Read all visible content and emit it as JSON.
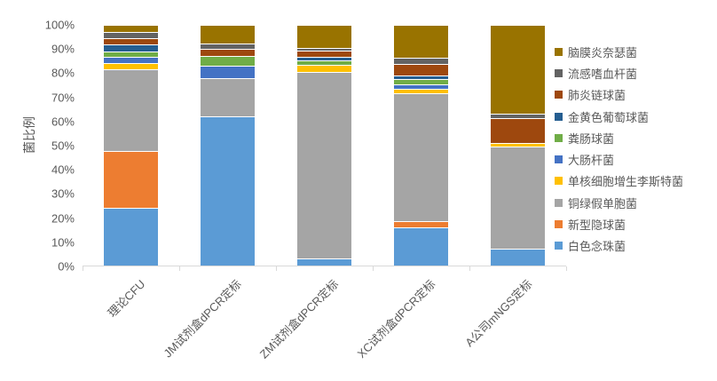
{
  "chart_data": {
    "type": "bar",
    "subtype": "stacked-100-percent",
    "title": "",
    "xlabel": "",
    "ylabel": "菌比例",
    "ylim": [
      0,
      100
    ],
    "y_ticks": [
      "0%",
      "10%",
      "20%",
      "30%",
      "40%",
      "50%",
      "60%",
      "70%",
      "80%",
      "90%",
      "100%"
    ],
    "grid": false,
    "legend_position": "right",
    "categories": [
      "理论CFU",
      "JM试剂盒dPCR定标",
      "ZM试剂盒dPCR定标",
      "XC试剂盒dPCR定标",
      "A公司mNGS定标"
    ],
    "series": [
      {
        "name": "白色念珠菌",
        "color": "#5B9BD5",
        "values": [
          24.0,
          62.0,
          3.0,
          16.0,
          7.0
        ]
      },
      {
        "name": "新型隐球菌",
        "color": "#ED7D31",
        "values": [
          23.7,
          0,
          0,
          2.4,
          0
        ]
      },
      {
        "name": "铜绿假单胞菌",
        "color": "#A5A5A5",
        "values": [
          34.0,
          15.8,
          77.5,
          53.3,
          42.4
        ]
      },
      {
        "name": "单核细胞增生李斯特菌",
        "color": "#FFC000",
        "values": [
          2.3,
          0,
          2.8,
          1.9,
          1.4
        ]
      },
      {
        "name": "大肠杆菌",
        "color": "#4472C4",
        "values": [
          2.7,
          5.2,
          0,
          1.6,
          0
        ]
      },
      {
        "name": "粪肠球菌",
        "color": "#70AD47",
        "values": [
          2.4,
          4.0,
          2.1,
          2.4,
          0
        ]
      },
      {
        "name": "金黄色葡萄球菌",
        "color": "#255E91",
        "values": [
          2.7,
          0,
          1.5,
          1.5,
          0
        ]
      },
      {
        "name": "肺炎链球菌",
        "color": "#9E480E",
        "values": [
          2.7,
          3.0,
          2.3,
          4.6,
          10.5
        ]
      },
      {
        "name": "流感嗜血杆菌",
        "color": "#636363",
        "values": [
          2.6,
          2.3,
          1.2,
          2.5,
          2.0
        ]
      },
      {
        "name": "脑膜炎奈瑟菌",
        "color": "#997300",
        "values": [
          2.9,
          7.7,
          9.6,
          13.8,
          36.7
        ]
      }
    ],
    "legend_items_top_to_bottom": [
      "脑膜炎奈瑟菌",
      "流感嗜血杆菌",
      "肺炎链球菌",
      "金黄色葡萄球菌",
      "粪肠球菌",
      "大肠杆菌",
      "单核细胞增生李斯特菌",
      "铜绿假单胞菌",
      "新型隐球菌",
      "白色念珠菌"
    ],
    "colors": {
      "axis_line": "#D9D9D9",
      "text": "#595959",
      "background": "#FFFFFF"
    }
  }
}
